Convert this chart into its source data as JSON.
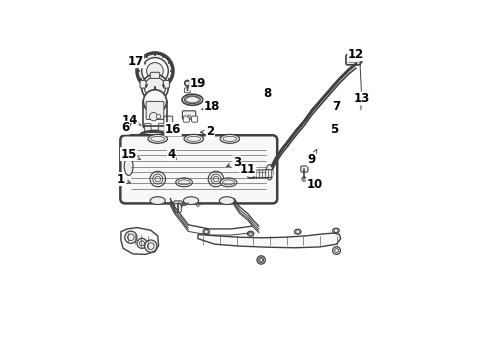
{
  "bg_color": "#ffffff",
  "line_color": "#404040",
  "label_color": "#000000",
  "arrow_color": "#404040",
  "font_size": 8.5,
  "label_positions": {
    "17": [
      0.085,
      0.935,
      0.125,
      0.925
    ],
    "14": [
      0.065,
      0.72,
      0.115,
      0.7
    ],
    "16": [
      0.22,
      0.69,
      0.195,
      0.665
    ],
    "15": [
      0.06,
      0.6,
      0.105,
      0.58
    ],
    "1": [
      0.03,
      0.51,
      0.08,
      0.49
    ],
    "19": [
      0.31,
      0.855,
      0.29,
      0.845
    ],
    "18": [
      0.36,
      0.77,
      0.32,
      0.76
    ],
    "2": [
      0.355,
      0.68,
      0.305,
      0.678
    ],
    "12": [
      0.88,
      0.96,
      0.862,
      0.95
    ],
    "13": [
      0.9,
      0.8,
      0.895,
      0.77
    ],
    "9": [
      0.72,
      0.58,
      0.74,
      0.62
    ],
    "10": [
      0.73,
      0.49,
      0.715,
      0.508
    ],
    "11": [
      0.49,
      0.545,
      0.5,
      0.527
    ],
    "3": [
      0.45,
      0.57,
      0.4,
      0.55
    ],
    "4": [
      0.215,
      0.6,
      0.235,
      0.578
    ],
    "5": [
      0.8,
      0.69,
      0.79,
      0.7
    ],
    "6": [
      0.048,
      0.695,
      0.072,
      0.712
    ],
    "7": [
      0.81,
      0.77,
      0.808,
      0.752
    ],
    "8": [
      0.56,
      0.82,
      0.545,
      0.812
    ]
  }
}
